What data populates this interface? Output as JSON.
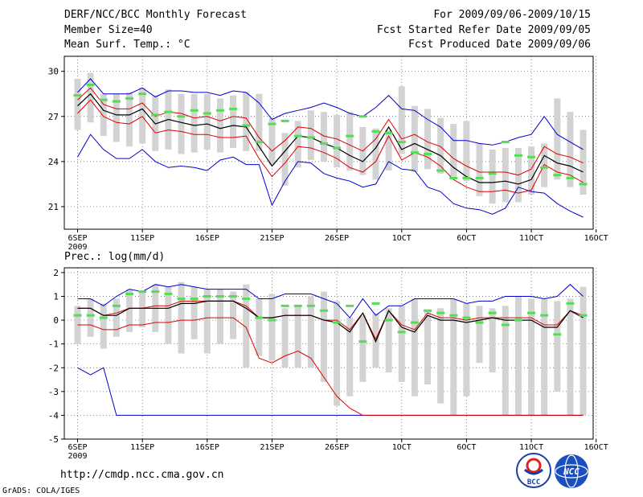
{
  "header": {
    "title": "DERF/NCC/BCC Monthly Forecast",
    "member": "Member Size=40",
    "variable": "Mean Surf. Temp.: °C",
    "period": "For 2009/09/06-2009/10/15",
    "started": "Fcst Started Refer Date 2009/09/05",
    "produced": "Fcst Produced Date 2009/09/06"
  },
  "footer": {
    "url": "http://cmdp.ncc.cma.gov.cn",
    "credit": "GrADS: COLA/IGES",
    "logo1_text": "BCC",
    "logo2_text": "NCC"
  },
  "colors": {
    "box": "#d3d3d3",
    "median": "#55dd55",
    "mean": "#000000",
    "ensemble_sd": "#dd0000",
    "envelope": "#0000cc",
    "grid": "#555555"
  },
  "chart_data": [
    {
      "type": "box",
      "title": "",
      "ylabel": "Mean Surf. Temp.: °C",
      "ylim": [
        19.5,
        31
      ],
      "yticks": [
        21,
        24,
        27,
        30
      ],
      "xlim": [
        0,
        40
      ],
      "xticks": [
        1,
        6,
        11,
        16,
        21,
        26,
        31,
        36,
        41
      ],
      "xticklabels": [
        "6SEP",
        "11SEP",
        "16SEP",
        "21SEP",
        "26SEP",
        "1OCT",
        "6OCT",
        "11OCT",
        "16OCT"
      ],
      "year_label": "2009",
      "days": [
        1,
        2,
        3,
        4,
        5,
        6,
        7,
        8,
        9,
        10,
        11,
        12,
        13,
        14,
        15,
        16,
        17,
        18,
        19,
        20,
        21,
        22,
        23,
        24,
        25,
        26,
        27,
        28,
        29,
        30,
        31,
        32,
        33,
        34,
        35,
        36,
        37,
        38,
        39,
        40
      ],
      "box_low": [
        26.1,
        26.6,
        25.7,
        25.3,
        25.0,
        25.2,
        24.7,
        24.8,
        24.5,
        24.6,
        24.8,
        24.6,
        24.9,
        24.7,
        24.7,
        23.8,
        22.4,
        23.6,
        24.1,
        24.0,
        23.6,
        23.4,
        23.1,
        22.8,
        23.4,
        24.5,
        23.3,
        23.5,
        23.2,
        23.0,
        22.7,
        21.7,
        21.2,
        21.3,
        21.3,
        21.8,
        22.3,
        22.8,
        22.3,
        21.8
      ],
      "box_high": [
        29.5,
        29.9,
        28.5,
        28.5,
        28.6,
        28.9,
        28.4,
        28.8,
        28.5,
        28.5,
        28.5,
        28.2,
        28.4,
        28.6,
        28.5,
        26.9,
        25.9,
        26.7,
        27.4,
        27.3,
        27.1,
        27.3,
        26.3,
        26.2,
        26.1,
        29.0,
        27.7,
        27.5,
        26.9,
        26.5,
        26.7,
        25.2,
        24.8,
        24.9,
        24.9,
        25.0,
        25.2,
        28.2,
        27.3,
        26.1
      ],
      "median": [
        28.4,
        29.1,
        28.1,
        28.0,
        28.2,
        28.5,
        27.1,
        27.3,
        27.0,
        27.4,
        27.2,
        27.4,
        27.5,
        26.4,
        25.3,
        26.5,
        26.7,
        25.7,
        25.6,
        25.2,
        24.9,
        25.7,
        27.0,
        26.0,
        25.9,
        25.3,
        24.6,
        24.5,
        23.4,
        22.9,
        22.9,
        22.9,
        23.2,
        25.3,
        24.4,
        24.3,
        23.6,
        23.1,
        22.9,
        22.5
      ],
      "mean": [
        27.7,
        28.5,
        27.4,
        27.1,
        27.1,
        27.5,
        26.5,
        26.8,
        26.6,
        26.4,
        26.5,
        26.2,
        26.4,
        26.3,
        25.0,
        23.7,
        24.7,
        25.7,
        25.6,
        25.2,
        24.9,
        24.4,
        24.0,
        24.9,
        26.3,
        24.8,
        25.2,
        24.8,
        24.4,
        23.6,
        23.0,
        22.6,
        22.6,
        22.7,
        22.5,
        22.8,
        24.4,
        23.9,
        23.7,
        23.3
      ],
      "mean_plus_sd": [
        28.1,
        28.9,
        27.8,
        27.5,
        27.5,
        27.9,
        27.0,
        27.3,
        27.2,
        26.9,
        27.0,
        26.7,
        27.0,
        26.9,
        25.6,
        24.7,
        25.4,
        26.3,
        26.2,
        25.7,
        25.5,
        25.1,
        24.7,
        25.5,
        26.8,
        25.5,
        25.8,
        25.3,
        25.0,
        24.2,
        23.7,
        23.3,
        23.3,
        23.3,
        23.1,
        23.5,
        25.0,
        24.5,
        24.3,
        23.9
      ],
      "mean_minus_sd": [
        27.2,
        28.1,
        27.0,
        26.6,
        26.5,
        27.0,
        25.9,
        26.1,
        26.0,
        25.8,
        25.8,
        25.6,
        25.6,
        25.7,
        24.2,
        23.0,
        23.9,
        25.0,
        24.9,
        24.6,
        24.2,
        23.6,
        23.3,
        24.0,
        25.7,
        24.1,
        24.6,
        24.3,
        23.7,
        22.8,
        22.3,
        22.0,
        22.0,
        22.1,
        21.9,
        22.1,
        23.8,
        23.3,
        23.1,
        22.6
      ],
      "max": [
        28.6,
        29.5,
        28.5,
        28.5,
        28.5,
        28.9,
        28.3,
        28.7,
        28.7,
        28.6,
        28.6,
        28.4,
        28.7,
        28.6,
        27.9,
        26.8,
        27.2,
        27.4,
        27.6,
        27.9,
        27.6,
        27.2,
        27.0,
        27.6,
        28.4,
        27.5,
        27.4,
        26.8,
        26.3,
        25.4,
        25.4,
        25.2,
        25.1,
        25.3,
        25.6,
        25.8,
        27.0,
        25.8,
        25.3,
        24.8
      ],
      "min": [
        24.3,
        25.8,
        24.8,
        24.2,
        24.2,
        24.8,
        24.0,
        23.6,
        23.7,
        23.6,
        23.4,
        24.1,
        24.3,
        23.8,
        23.8,
        21.1,
        22.7,
        24.0,
        23.9,
        23.2,
        22.9,
        22.7,
        22.3,
        22.5,
        24.0,
        23.5,
        23.4,
        22.3,
        22.0,
        21.2,
        20.9,
        20.8,
        20.5,
        20.9,
        22.3,
        22.0,
        21.9,
        21.2,
        20.7,
        20.3
      ]
    },
    {
      "type": "box",
      "title": "Prec.: log(mm/d)",
      "ylabel": "Prec.: log(mm/d)",
      "ylim": [
        -5,
        2.2
      ],
      "yticks": [
        -5,
        -4,
        -3,
        -2,
        -1,
        0,
        1,
        2
      ],
      "xlim": [
        0,
        40
      ],
      "xticks": [
        1,
        6,
        11,
        16,
        21,
        26,
        31,
        36,
        41
      ],
      "xticklabels": [
        "6SEP",
        "11SEP",
        "16SEP",
        "21SEP",
        "26SEP",
        "1OCT",
        "6OCT",
        "11OCT",
        "16OCT"
      ],
      "year_label": "2009",
      "days": [
        1,
        2,
        3,
        4,
        5,
        6,
        7,
        8,
        9,
        10,
        11,
        12,
        13,
        14,
        15,
        16,
        17,
        18,
        19,
        20,
        21,
        22,
        23,
        24,
        25,
        26,
        27,
        28,
        29,
        30,
        31,
        32,
        33,
        34,
        35,
        36,
        37,
        38,
        39,
        40
      ],
      "box_low": [
        -1.0,
        -0.7,
        -1.2,
        -0.7,
        -0.5,
        -0.3,
        -0.5,
        -1.0,
        -1.4,
        -0.8,
        -1.4,
        -1.0,
        -0.8,
        -2.0,
        -1.5,
        -1.7,
        -2.0,
        -2.0,
        -2.0,
        -2.6,
        -3.6,
        -3.2,
        -2.6,
        -2.0,
        -2.2,
        -2.6,
        -3.2,
        -2.7,
        -3.5,
        -4.0,
        -3.2,
        -1.8,
        -2.2,
        -4.0,
        -4.0,
        -4.0,
        -4.0,
        -3.0,
        -4.0,
        -4.0
      ],
      "box_high": [
        0.6,
        0.9,
        0.7,
        0.9,
        1.3,
        1.2,
        1.5,
        1.4,
        1.6,
        1.4,
        1.3,
        1.3,
        1.2,
        1.5,
        0.9,
        1.1,
        0.5,
        0.6,
        1.0,
        1.2,
        0.8,
        0.1,
        0.2,
        0.3,
        0.5,
        0.6,
        0.9,
        0.4,
        0.5,
        0.9,
        0.7,
        0.6,
        0.5,
        0.6,
        1.0,
        0.9,
        0.9,
        0.8,
        0.9,
        1.4
      ],
      "median": [
        0.2,
        0.2,
        0.1,
        0.6,
        1.1,
        1.2,
        1.2,
        1.1,
        0.9,
        0.9,
        1.0,
        1.0,
        1.0,
        0.9,
        0.1,
        0.0,
        0.6,
        0.6,
        0.6,
        0.4,
        -0.1,
        0.6,
        -0.9,
        0.7,
        0.0,
        -0.5,
        -0.1,
        0.4,
        0.3,
        0.2,
        0.1,
        -0.1,
        0.3,
        -0.2,
        0.0,
        0.3,
        0.2,
        -0.6,
        0.7,
        0.2
      ],
      "mean": [
        0.5,
        0.5,
        0.2,
        0.2,
        0.5,
        0.5,
        0.5,
        0.5,
        0.7,
        0.7,
        0.8,
        0.8,
        0.8,
        0.5,
        0.1,
        0.1,
        0.2,
        0.2,
        0.2,
        0.0,
        -0.1,
        -0.5,
        0.3,
        -0.9,
        0.4,
        -0.3,
        -0.5,
        0.2,
        0.0,
        0.0,
        -0.1,
        0.0,
        0.1,
        0.0,
        0.0,
        0.0,
        -0.3,
        -0.3,
        0.4,
        0.1
      ],
      "mean_plus_sd": [
        0.5,
        0.5,
        0.2,
        0.3,
        0.5,
        0.5,
        0.6,
        0.6,
        0.8,
        0.8,
        0.8,
        0.8,
        0.8,
        0.6,
        0.1,
        0.1,
        0.2,
        0.2,
        0.2,
        0.0,
        0.0,
        -0.4,
        0.3,
        -0.8,
        0.4,
        -0.2,
        -0.4,
        0.3,
        0.1,
        0.1,
        0.0,
        0.1,
        0.1,
        0.1,
        0.1,
        0.1,
        -0.2,
        -0.2,
        0.4,
        0.2
      ],
      "mean_minus_sd": [
        -0.2,
        -0.2,
        -0.4,
        -0.4,
        -0.2,
        -0.2,
        -0.1,
        -0.1,
        0.0,
        0.0,
        0.1,
        0.1,
        0.1,
        -0.3,
        -1.6,
        -1.8,
        -1.5,
        -1.3,
        -1.6,
        -2.4,
        -3.2,
        -3.7,
        -4.0,
        -4.0,
        -4.0,
        -4.0,
        -4.0,
        -4.0,
        -4.0,
        -4.0,
        -4.0,
        -4.0,
        -4.0,
        -4.0,
        -4.0,
        -4.0,
        -4.0,
        -4.0,
        -4.0,
        -4.0
      ],
      "max": [
        0.9,
        0.9,
        0.6,
        1.0,
        1.3,
        1.2,
        1.5,
        1.4,
        1.5,
        1.4,
        1.3,
        1.3,
        1.3,
        1.3,
        0.9,
        0.9,
        1.1,
        1.1,
        1.1,
        0.9,
        0.7,
        0.1,
        0.9,
        0.2,
        0.6,
        0.6,
        0.9,
        0.9,
        0.9,
        0.9,
        0.7,
        0.8,
        0.8,
        1.0,
        1.0,
        1.0,
        0.9,
        1.0,
        1.5,
        1.0
      ],
      "min": [
        -2.0,
        -2.3,
        -2.0,
        -4.0,
        -4.0,
        -4.0,
        -4.0,
        -4.0,
        -4.0,
        -4.0,
        -4.0,
        -4.0,
        -4.0,
        -4.0,
        -4.0,
        -4.0,
        -4.0,
        -4.0,
        -4.0,
        -4.0,
        -4.0,
        -4.0,
        -4.0,
        -4.0,
        -4.0,
        -4.0,
        -4.0,
        -4.0,
        -4.0,
        -4.0,
        -4.0,
        -4.0,
        -4.0,
        -4.0,
        -4.0,
        -4.0,
        -4.0,
        -4.0,
        -4.0,
        -4.0
      ]
    }
  ]
}
